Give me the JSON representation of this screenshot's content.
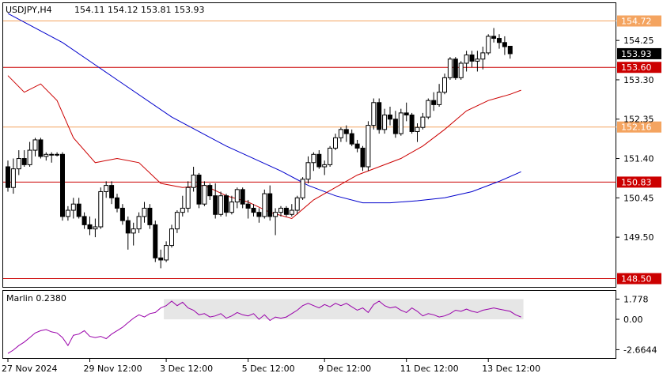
{
  "chart_data": [
    {
      "type": "candlestick",
      "title": "USDJPY,H4",
      "ohlc_label": "154.11 154.12 153.81 153.93",
      "current_price": 153.93,
      "ylim": [
        148.3,
        155.15
      ],
      "y_ticks": [
        154.25,
        153.3,
        152.35,
        151.4,
        150.45,
        149.5
      ],
      "x_tick_labels": [
        "27 Nov 2024",
        "29 Nov 12:00",
        "3 Dec 12:00",
        "5 Dec 12:00",
        "9 Dec 12:00",
        "11 Dec 12:00",
        "13 Dec 12:00"
      ],
      "x_tick_bar_index": [
        0,
        15,
        29,
        44,
        58,
        73,
        88
      ],
      "levels": [
        {
          "value": 154.72,
          "label": "154.72",
          "color": "#f4a460"
        },
        {
          "value": 153.6,
          "label": "153.60",
          "color": "#cc0000"
        },
        {
          "value": 152.16,
          "label": "152.16",
          "color": "#f4a460"
        },
        {
          "value": 150.83,
          "label": "150.83",
          "color": "#cc0000"
        },
        {
          "value": 148.5,
          "label": "148.50",
          "color": "#cc0000"
        }
      ],
      "candles": [
        [
          151.2,
          151.35,
          150.6,
          150.7
        ],
        [
          150.7,
          151.4,
          150.55,
          151.15
        ],
        [
          151.15,
          151.6,
          151.0,
          151.4
        ],
        [
          151.4,
          151.6,
          151.2,
          151.25
        ],
        [
          151.25,
          151.8,
          151.2,
          151.6
        ],
        [
          151.6,
          151.9,
          151.45,
          151.85
        ],
        [
          151.85,
          151.9,
          151.4,
          151.45
        ],
        [
          151.45,
          151.55,
          151.35,
          151.5
        ],
        [
          151.5,
          151.55,
          151.3,
          151.5
        ],
        [
          151.5,
          151.55,
          151.45,
          151.5
        ],
        [
          151.5,
          151.55,
          149.9,
          150.0
        ],
        [
          150.0,
          150.25,
          149.9,
          150.15
        ],
        [
          150.15,
          150.45,
          149.95,
          150.3
        ],
        [
          150.3,
          150.45,
          149.95,
          150.0
        ],
        [
          150.0,
          150.1,
          149.7,
          149.8
        ],
        [
          149.8,
          150.0,
          149.55,
          149.7
        ],
        [
          149.7,
          149.95,
          149.5,
          149.75
        ],
        [
          149.75,
          150.7,
          149.7,
          150.6
        ],
        [
          150.6,
          150.85,
          150.45,
          150.75
        ],
        [
          150.75,
          150.85,
          150.3,
          150.45
        ],
        [
          150.45,
          150.55,
          150.1,
          150.2
        ],
        [
          150.2,
          150.3,
          149.8,
          149.9
        ],
        [
          149.9,
          150.0,
          149.2,
          149.6
        ],
        [
          149.6,
          149.85,
          149.3,
          149.7
        ],
        [
          149.7,
          150.1,
          149.6,
          150.0
        ],
        [
          150.0,
          150.35,
          149.85,
          150.2
        ],
        [
          150.2,
          150.3,
          149.7,
          149.8
        ],
        [
          149.8,
          149.9,
          148.9,
          149.0
        ],
        [
          149.0,
          149.2,
          148.75,
          148.95
        ],
        [
          148.95,
          149.4,
          148.9,
          149.3
        ],
        [
          149.3,
          149.8,
          149.25,
          149.7
        ],
        [
          149.7,
          150.15,
          149.6,
          150.1
        ],
        [
          150.1,
          150.5,
          150.0,
          150.2
        ],
        [
          150.2,
          150.85,
          150.1,
          150.7
        ],
        [
          150.7,
          151.2,
          150.6,
          151.0
        ],
        [
          151.0,
          151.05,
          150.2,
          150.3
        ],
        [
          150.3,
          150.85,
          150.25,
          150.75
        ],
        [
          150.75,
          150.8,
          150.4,
          150.5
        ],
        [
          150.5,
          150.8,
          149.95,
          150.05
        ],
        [
          150.05,
          150.6,
          150.0,
          150.5
        ],
        [
          150.5,
          150.55,
          150.0,
          150.1
        ],
        [
          150.1,
          150.5,
          150.05,
          150.35
        ],
        [
          150.35,
          150.7,
          150.2,
          150.65
        ],
        [
          150.65,
          150.7,
          150.2,
          150.3
        ],
        [
          150.3,
          150.4,
          149.95,
          150.2
        ],
        [
          150.2,
          150.3,
          150.0,
          150.1
        ],
        [
          150.1,
          150.2,
          149.85,
          150.0
        ],
        [
          150.0,
          150.65,
          149.95,
          150.55
        ],
        [
          150.55,
          150.75,
          149.9,
          150.0
        ],
        [
          150.0,
          150.2,
          149.55,
          150.1
        ],
        [
          150.1,
          150.25,
          150.0,
          150.2
        ],
        [
          150.2,
          150.25,
          150.0,
          150.05
        ],
        [
          150.05,
          150.3,
          150.0,
          150.15
        ],
        [
          150.15,
          150.5,
          150.05,
          150.45
        ],
        [
          150.45,
          150.95,
          150.4,
          150.9
        ],
        [
          150.9,
          151.45,
          150.8,
          151.3
        ],
        [
          151.3,
          151.55,
          151.1,
          151.5
        ],
        [
          151.5,
          151.6,
          151.15,
          151.2
        ],
        [
          151.2,
          151.35,
          151.0,
          151.25
        ],
        [
          151.25,
          151.7,
          151.2,
          151.65
        ],
        [
          151.65,
          152.0,
          151.6,
          151.9
        ],
        [
          151.9,
          152.15,
          151.8,
          152.1
        ],
        [
          152.1,
          152.2,
          151.8,
          152.0
        ],
        [
          152.0,
          152.1,
          151.7,
          151.75
        ],
        [
          151.75,
          151.85,
          151.55,
          151.65
        ],
        [
          151.65,
          151.7,
          151.1,
          151.2
        ],
        [
          151.2,
          152.3,
          151.1,
          152.2
        ],
        [
          152.2,
          152.85,
          152.1,
          152.75
        ],
        [
          152.75,
          152.85,
          152.0,
          152.1
        ],
        [
          152.1,
          152.6,
          152.0,
          152.45
        ],
        [
          152.45,
          152.65,
          152.2,
          152.35
        ],
        [
          152.35,
          152.55,
          151.9,
          152.0
        ],
        [
          152.0,
          152.6,
          151.95,
          152.5
        ],
        [
          152.5,
          152.75,
          152.3,
          152.45
        ],
        [
          152.45,
          152.5,
          152.0,
          152.05
        ],
        [
          152.05,
          152.25,
          151.8,
          152.15
        ],
        [
          152.15,
          152.5,
          152.1,
          152.4
        ],
        [
          152.4,
          152.85,
          152.35,
          152.8
        ],
        [
          152.8,
          153.0,
          152.55,
          152.7
        ],
        [
          152.7,
          153.2,
          152.65,
          153.0
        ],
        [
          153.0,
          153.45,
          152.95,
          153.35
        ],
        [
          153.35,
          153.85,
          153.3,
          153.8
        ],
        [
          153.8,
          153.85,
          153.3,
          153.35
        ],
        [
          153.35,
          153.75,
          153.3,
          153.7
        ],
        [
          153.7,
          154.0,
          153.5,
          153.9
        ],
        [
          153.9,
          154.0,
          153.6,
          153.75
        ],
        [
          153.75,
          154.0,
          153.5,
          153.8
        ],
        [
          153.8,
          154.1,
          153.55,
          153.95
        ],
        [
          153.95,
          154.4,
          153.9,
          154.35
        ],
        [
          154.35,
          154.55,
          154.2,
          154.3
        ],
        [
          154.3,
          154.4,
          154.05,
          154.2
        ],
        [
          154.2,
          154.35,
          153.9,
          154.1
        ],
        [
          154.11,
          154.12,
          153.81,
          153.93
        ]
      ],
      "ma_series": [
        {
          "color": "#0000cc",
          "x": [
            0,
            10,
            20,
            30,
            40,
            50,
            55,
            60,
            65,
            70,
            75,
            80,
            85,
            90,
            94
          ],
          "y": [
            154.9,
            154.2,
            153.3,
            152.4,
            151.7,
            151.1,
            150.75,
            150.5,
            150.33,
            150.33,
            150.38,
            150.45,
            150.6,
            150.85,
            151.08
          ]
        },
        {
          "color": "#cc0000",
          "x": [
            0,
            3,
            6,
            9,
            12,
            16,
            20,
            24,
            28,
            32,
            36,
            40,
            44,
            48,
            52,
            56,
            60,
            64,
            68,
            72,
            76,
            80,
            84,
            88,
            92,
            94
          ],
          "y": [
            153.4,
            153.0,
            153.2,
            152.8,
            151.9,
            151.3,
            151.4,
            151.3,
            150.8,
            150.7,
            150.75,
            150.5,
            150.35,
            150.1,
            149.95,
            150.4,
            150.7,
            151.0,
            151.2,
            151.4,
            151.7,
            152.1,
            152.55,
            152.8,
            152.95,
            153.05
          ]
        }
      ]
    },
    {
      "type": "line",
      "title": "Marlin 0.2380",
      "ylim": [
        -3.4,
        2.5
      ],
      "y_ticks": [
        1.778,
        0.0,
        -2.6644
      ],
      "y_tick_labels": [
        "1.778",
        "0.00",
        "-2.6644"
      ],
      "zone": {
        "low": 0.0,
        "high": 1.778,
        "from_bar": 29,
        "to_bar": 94
      },
      "line_color": "#9900aa",
      "values": [
        -3.0,
        -2.7,
        -2.3,
        -2.0,
        -1.6,
        -1.2,
        -1.0,
        -0.9,
        -1.1,
        -1.2,
        -1.6,
        -2.3,
        -1.4,
        -1.3,
        -1.0,
        -1.5,
        -1.6,
        -1.5,
        -1.7,
        -1.3,
        -1.0,
        -0.7,
        -0.3,
        0.1,
        0.4,
        0.2,
        0.5,
        0.6,
        1.0,
        1.2,
        1.6,
        1.2,
        1.5,
        1.0,
        0.8,
        0.4,
        0.5,
        0.2,
        0.3,
        0.5,
        0.1,
        0.3,
        0.6,
        0.4,
        0.3,
        0.5,
        0.0,
        0.4,
        -0.1,
        0.2,
        0.1,
        0.2,
        0.5,
        0.8,
        1.2,
        1.4,
        1.2,
        1.0,
        1.3,
        1.1,
        1.4,
        1.2,
        1.4,
        1.1,
        0.8,
        1.0,
        0.6,
        1.3,
        1.6,
        1.2,
        1.0,
        1.1,
        0.8,
        0.6,
        1.0,
        0.7,
        0.3,
        0.5,
        0.4,
        0.2,
        0.3,
        0.5,
        0.8,
        0.7,
        0.9,
        0.7,
        0.6,
        0.8,
        0.9,
        1.0,
        0.9,
        0.8,
        0.7,
        0.4,
        0.2
      ]
    }
  ]
}
